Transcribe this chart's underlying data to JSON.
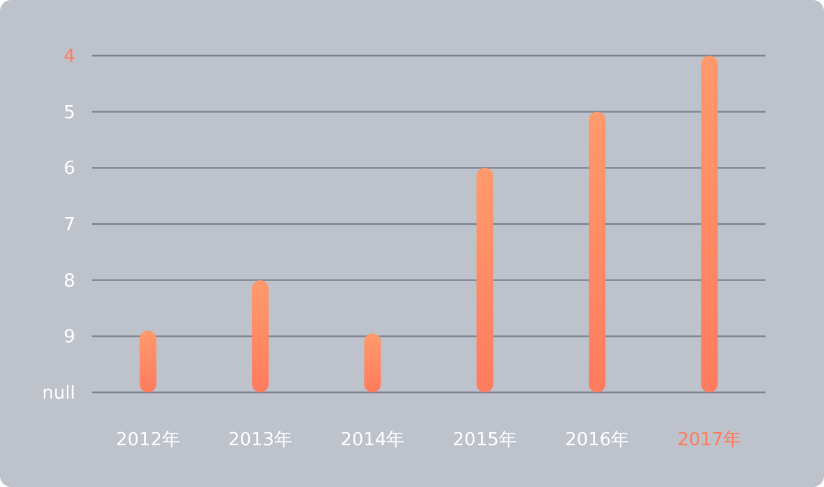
{
  "chart_data": {
    "type": "bar",
    "categories": [
      "2012年",
      "2013年",
      "2014年",
      "2015年",
      "2016年",
      "2017年"
    ],
    "values": [
      -1.1,
      -2,
      -1.05,
      -4,
      -5,
      -6
    ],
    "base": [
      10,
      10,
      10,
      10,
      10,
      10
    ],
    "color": "#ff7b5e",
    "ylim": [
      10,
      4
    ],
    "yticks": [
      {
        "value": 10,
        "label": "null"
      },
      9,
      8,
      7,
      6,
      5,
      4
    ],
    "grid": "y"
  }
}
